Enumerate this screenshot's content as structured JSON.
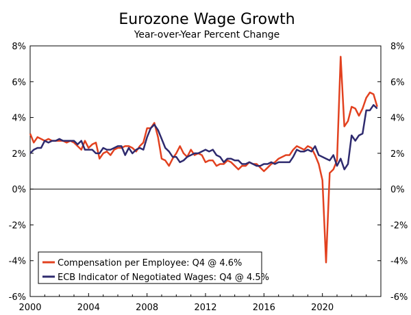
{
  "chart_data": {
    "type": "line",
    "title": "Eurozone Wage Growth",
    "subtitle": "Year-over-Year Percent Change",
    "ylim": [
      -6,
      8
    ],
    "yticks": [
      -6,
      -4,
      -2,
      0,
      2,
      4,
      6,
      8
    ],
    "ytick_labels": [
      "-6%",
      "-4%",
      "-2%",
      "0%",
      "2%",
      "4%",
      "6%",
      "8%"
    ],
    "xlim": [
      2000,
      2024
    ],
    "xticks": [
      2000,
      2004,
      2008,
      2012,
      2016,
      2020
    ],
    "xtick_labels": [
      "2000",
      "2004",
      "2008",
      "2012",
      "2016",
      "2020"
    ],
    "legend_position": "bottom-left",
    "series": [
      {
        "name": "Compensation per Employee: Q4 @ 4.6%",
        "color": "#E2411F",
        "x": [
          2000.0,
          2000.25,
          2000.5,
          2000.75,
          2001.0,
          2001.25,
          2001.5,
          2001.75,
          2002.0,
          2002.25,
          2002.5,
          2002.75,
          2003.0,
          2003.25,
          2003.5,
          2003.75,
          2004.0,
          2004.25,
          2004.5,
          2004.75,
          2005.0,
          2005.25,
          2005.5,
          2005.75,
          2006.0,
          2006.25,
          2006.5,
          2006.75,
          2007.0,
          2007.25,
          2007.5,
          2007.75,
          2008.0,
          2008.25,
          2008.5,
          2008.75,
          2009.0,
          2009.25,
          2009.5,
          2009.75,
          2010.0,
          2010.25,
          2010.5,
          2010.75,
          2011.0,
          2011.25,
          2011.5,
          2011.75,
          2012.0,
          2012.25,
          2012.5,
          2012.75,
          2013.0,
          2013.25,
          2013.5,
          2013.75,
          2014.0,
          2014.25,
          2014.5,
          2014.75,
          2015.0,
          2015.25,
          2015.5,
          2015.75,
          2016.0,
          2016.25,
          2016.5,
          2016.75,
          2017.0,
          2017.25,
          2017.5,
          2017.75,
          2018.0,
          2018.25,
          2018.5,
          2018.75,
          2019.0,
          2019.25,
          2019.5,
          2019.75,
          2020.0,
          2020.25,
          2020.5,
          2020.75,
          2021.0,
          2021.25,
          2021.5,
          2021.75,
          2022.0,
          2022.25,
          2022.5,
          2022.75,
          2023.0,
          2023.25,
          2023.5,
          2023.75
        ],
        "values": [
          3.1,
          2.6,
          2.9,
          2.8,
          2.7,
          2.8,
          2.7,
          2.7,
          2.7,
          2.7,
          2.6,
          2.7,
          2.6,
          2.4,
          2.2,
          2.7,
          2.3,
          2.5,
          2.6,
          1.7,
          2.0,
          2.1,
          1.9,
          2.2,
          2.3,
          2.3,
          2.4,
          2.4,
          2.3,
          2.1,
          2.4,
          2.6,
          3.4,
          3.4,
          3.7,
          2.9,
          1.7,
          1.6,
          1.3,
          1.7,
          2.0,
          2.4,
          2.0,
          1.8,
          2.2,
          1.9,
          2.0,
          1.9,
          1.5,
          1.6,
          1.6,
          1.3,
          1.4,
          1.4,
          1.6,
          1.5,
          1.3,
          1.1,
          1.3,
          1.3,
          1.5,
          1.4,
          1.4,
          1.2,
          1.0,
          1.2,
          1.4,
          1.5,
          1.7,
          1.8,
          1.9,
          1.9,
          2.2,
          2.4,
          2.3,
          2.2,
          2.4,
          2.3,
          1.9,
          1.4,
          0.5,
          -4.1,
          0.9,
          1.1,
          1.6,
          7.4,
          3.5,
          3.8,
          4.6,
          4.5,
          4.1,
          4.5,
          5.1,
          5.4,
          5.3,
          4.6
        ]
      },
      {
        "name": "ECB Indicator of Negotiated Wages: Q4 @ 4.5%",
        "color": "#2E2A6E",
        "x": [
          2000.0,
          2000.25,
          2000.5,
          2000.75,
          2001.0,
          2001.25,
          2001.5,
          2001.75,
          2002.0,
          2002.25,
          2002.5,
          2002.75,
          2003.0,
          2003.25,
          2003.5,
          2003.75,
          2004.0,
          2004.25,
          2004.5,
          2004.75,
          2005.0,
          2005.25,
          2005.5,
          2005.75,
          2006.0,
          2006.25,
          2006.5,
          2006.75,
          2007.0,
          2007.25,
          2007.5,
          2007.75,
          2008.0,
          2008.25,
          2008.5,
          2008.75,
          2009.0,
          2009.25,
          2009.5,
          2009.75,
          2010.0,
          2010.25,
          2010.5,
          2010.75,
          2011.0,
          2011.25,
          2011.5,
          2011.75,
          2012.0,
          2012.25,
          2012.5,
          2012.75,
          2013.0,
          2013.25,
          2013.5,
          2013.75,
          2014.0,
          2014.25,
          2014.5,
          2014.75,
          2015.0,
          2015.25,
          2015.5,
          2015.75,
          2016.0,
          2016.25,
          2016.5,
          2016.75,
          2017.0,
          2017.25,
          2017.5,
          2017.75,
          2018.0,
          2018.25,
          2018.5,
          2018.75,
          2019.0,
          2019.25,
          2019.5,
          2019.75,
          2020.0,
          2020.25,
          2020.5,
          2020.75,
          2021.0,
          2021.25,
          2021.5,
          2021.75,
          2022.0,
          2022.25,
          2022.5,
          2022.75,
          2023.0,
          2023.25,
          2023.5,
          2023.75
        ],
        "values": [
          2.0,
          2.2,
          2.3,
          2.3,
          2.7,
          2.6,
          2.7,
          2.7,
          2.8,
          2.7,
          2.7,
          2.7,
          2.7,
          2.5,
          2.7,
          2.2,
          2.2,
          2.2,
          2.0,
          2.0,
          2.3,
          2.2,
          2.2,
          2.3,
          2.4,
          2.4,
          1.9,
          2.3,
          2.0,
          2.2,
          2.3,
          2.2,
          2.9,
          3.4,
          3.6,
          3.3,
          2.8,
          2.3,
          2.1,
          1.8,
          1.8,
          1.5,
          1.6,
          1.8,
          1.9,
          2.0,
          2.0,
          2.1,
          2.2,
          2.1,
          2.2,
          1.9,
          1.8,
          1.5,
          1.7,
          1.7,
          1.6,
          1.6,
          1.4,
          1.4,
          1.5,
          1.4,
          1.3,
          1.3,
          1.4,
          1.4,
          1.5,
          1.4,
          1.5,
          1.5,
          1.5,
          1.5,
          1.8,
          2.2,
          2.1,
          2.1,
          2.2,
          2.1,
          2.4,
          1.9,
          1.8,
          1.7,
          1.6,
          1.9,
          1.3,
          1.7,
          1.1,
          1.4,
          3.0,
          2.7,
          3.0,
          3.1,
          4.4,
          4.4,
          4.7,
          4.5
        ]
      }
    ]
  }
}
